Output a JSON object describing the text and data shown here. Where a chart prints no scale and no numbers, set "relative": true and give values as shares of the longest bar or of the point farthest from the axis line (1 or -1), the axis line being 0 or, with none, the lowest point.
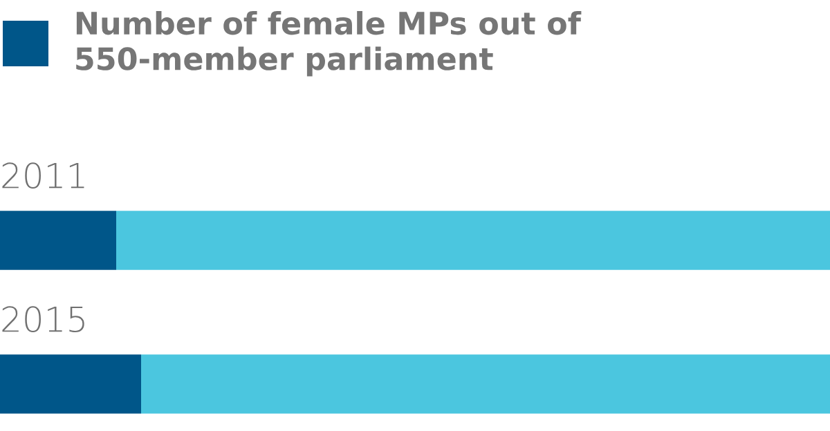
{
  "chart_data": {
    "type": "bar",
    "orientation": "horizontal",
    "stacked": true,
    "relative": true,
    "categories": [
      "2011",
      "2015"
    ],
    "series": [
      {
        "name": "Number of female MPs out of 550-member parliament",
        "color": "#005689",
        "values": [
          0.14,
          0.17
        ]
      },
      {
        "color": "#4bc6df",
        "values": [
          0.86,
          0.83
        ]
      }
    ],
    "legend": "top left"
  }
}
